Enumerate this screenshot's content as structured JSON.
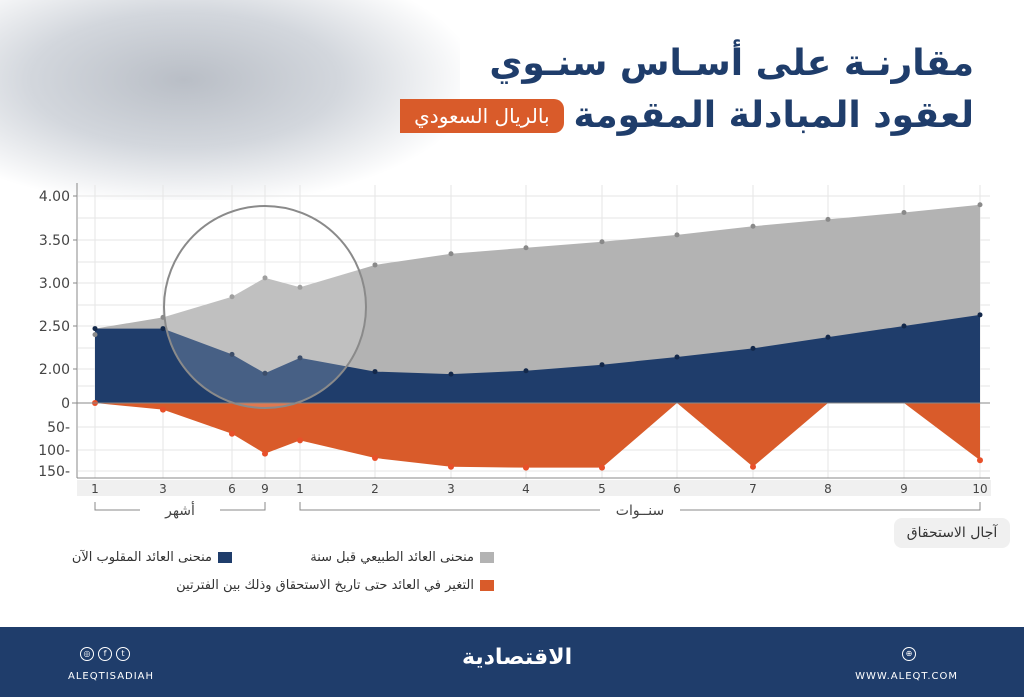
{
  "header": {
    "title_line1": "مقارنـة على أسـاس سنـوي",
    "title_line2": "لعقود المبادلة المقومة",
    "badge": "بالريال السعودي"
  },
  "chart_data": {
    "type": "area",
    "categories": [
      "1",
      "3",
      "6",
      "9",
      "1",
      "2",
      "3",
      "4",
      "5",
      "6",
      "7",
      "8",
      "9",
      "10"
    ],
    "category_groups": [
      {
        "label": "أشهر",
        "categories": [
          "1",
          "3",
          "6",
          "9"
        ]
      },
      {
        "label": "سنــوات",
        "categories": [
          "1",
          "2",
          "3",
          "4",
          "5",
          "6",
          "7",
          "8",
          "9",
          "10"
        ]
      }
    ],
    "xlabel": "آجال الاستحقاق",
    "yticks_upper": [
      "4.00",
      "3.50",
      "3.00",
      "2.50",
      "2.00"
    ],
    "yticks_lower": [
      "0",
      "50-",
      "100-",
      "150-"
    ],
    "ylim_upper": [
      2.0,
      4.0
    ],
    "ylim_lower": [
      -150,
      0
    ],
    "grid": true,
    "legend_placement": "bottom",
    "series": [
      {
        "name": "منحنى العائد الطبيعي قبل سنة",
        "color": "#b3b3b3",
        "axis": "upper",
        "values": [
          2.4,
          2.6,
          2.84,
          3.06,
          2.95,
          3.21,
          3.34,
          3.41,
          3.48,
          3.56,
          3.66,
          3.74,
          3.82,
          3.91
        ]
      },
      {
        "name": "منحنى العائد المقلوب الآن",
        "color": "#1f3d6b",
        "axis": "upper",
        "values": [
          2.47,
          2.47,
          2.17,
          1.95,
          2.13,
          1.97,
          1.94,
          1.98,
          2.05,
          2.14,
          2.24,
          2.37,
          2.5,
          2.63
        ]
      },
      {
        "name": "التغير في العائد حتى تاريخ الاستحقاق وذلك بين الفترتين",
        "color": "#d95b2a",
        "axis": "lower",
        "values": [
          5,
          -15,
          -70,
          -115,
          -85,
          -125,
          -145,
          -147,
          -147,
          0,
          -145,
          0,
          0,
          -130
        ]
      }
    ]
  },
  "footer": {
    "logo": "الاقتصادية",
    "handle": "ALEQTISADIAH",
    "url": "WWW.ALEQT.COM",
    "icons": [
      "instagram-icon",
      "facebook-icon",
      "twitter-icon",
      "globe-icon"
    ]
  }
}
